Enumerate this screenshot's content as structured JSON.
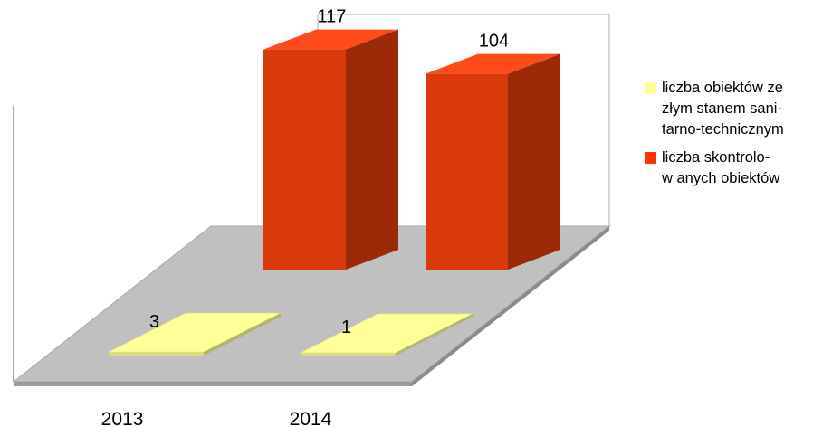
{
  "chart_data": {
    "type": "bar",
    "categories": [
      "2013",
      "2014"
    ],
    "series": [
      {
        "name": "liczba obiektów  ze złym stanem sani-tarno-technicznym",
        "legend_lines": [
          "liczba obiektów  ze",
          "złym stanem sani-",
          "tarno-technicznym"
        ],
        "values": [
          3,
          1
        ],
        "color": "#ffff99"
      },
      {
        "name": "liczba skontrolo-w anych obiektów",
        "legend_lines": [
          "liczba skontrolo-",
          "w anych obiektów"
        ],
        "values": [
          117,
          104
        ],
        "color": "#ff3300"
      }
    ],
    "ylim": [
      0,
      120
    ],
    "grid": false,
    "legend_position": "right",
    "three_d": true
  }
}
